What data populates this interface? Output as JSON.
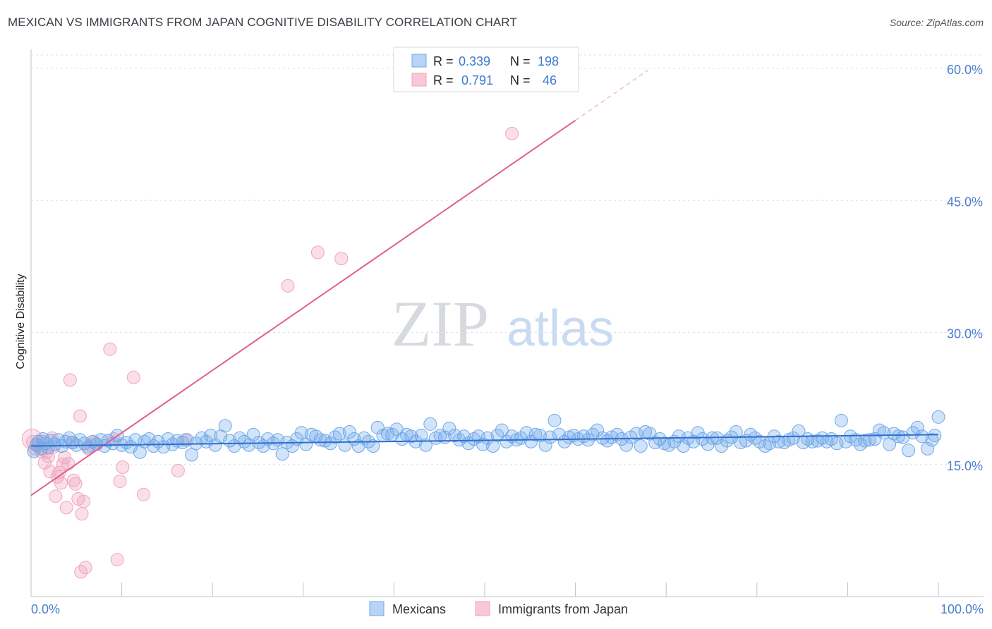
{
  "title": "MEXICAN VS IMMIGRANTS FROM JAPAN COGNITIVE DISABILITY CORRELATION CHART",
  "source": "Source: ZipAtlas.com",
  "watermark": {
    "zip": "ZIP",
    "atlas": "atlas"
  },
  "colors": {
    "blue": "#6fa8e8",
    "blue_line": "#2f6fd1",
    "pink": "#f2a3bd",
    "pink_line": "#e0608a",
    "tick": "#4a7fd0"
  },
  "legend": {
    "rows": [
      {
        "r_label": "R =",
        "r_value": "0.339",
        "n_label": "N =",
        "n_value": "198"
      },
      {
        "r_label": "R =",
        "r_value": "0.791",
        "n_label": "N =",
        "n_value": "46"
      }
    ]
  },
  "bottom_legend": [
    "Mexicans",
    "Immigrants from Japan"
  ],
  "chart_data": {
    "type": "scatter",
    "title": "MEXICAN VS IMMIGRANTS FROM JAPAN COGNITIVE DISABILITY CORRELATION CHART",
    "xlabel": "",
    "ylabel": "Cognitive Disability",
    "xlim": [
      0,
      100
    ],
    "ylim": [
      0,
      63
    ],
    "x_tick_labels": [
      "0.0%",
      "100.0%"
    ],
    "y_ticks": [
      15,
      30,
      45,
      60
    ],
    "y_tick_labels": [
      "15.0%",
      "30.0%",
      "45.0%",
      "60.0%"
    ],
    "series": [
      {
        "name": "Mexicans",
        "R": 0.339,
        "N": 198,
        "trend": {
          "x0": 0,
          "y0": 17.1,
          "x1": 100,
          "y1": 18.4
        },
        "points": [
          [
            0.3,
            16.5
          ],
          [
            0.6,
            17.2
          ],
          [
            0.8,
            17.6
          ],
          [
            1.1,
            16.8
          ],
          [
            1.3,
            17.9
          ],
          [
            1.6,
            17.4
          ],
          [
            1.9,
            16.9
          ],
          [
            2.2,
            17.7
          ],
          [
            2.6,
            17.3
          ],
          [
            3.0,
            17.8
          ],
          [
            3.4,
            17.1
          ],
          [
            3.8,
            17.6
          ],
          [
            4.2,
            18.0
          ],
          [
            4.6,
            17.5
          ],
          [
            5.0,
            17.2
          ],
          [
            5.4,
            17.8
          ],
          [
            5.9,
            17.4
          ],
          [
            6.3,
            17.0
          ],
          [
            6.8,
            17.6
          ],
          [
            7.2,
            17.3
          ],
          [
            7.7,
            17.8
          ],
          [
            8.1,
            17.1
          ],
          [
            8.5,
            17.7
          ],
          [
            9.0,
            17.4
          ],
          [
            9.5,
            18.3
          ],
          [
            10.0,
            17.2
          ],
          [
            10.5,
            17.5
          ],
          [
            11.0,
            17.0
          ],
          [
            11.5,
            17.8
          ],
          [
            12.0,
            16.4
          ],
          [
            12.5,
            17.6
          ],
          [
            13.0,
            17.9
          ],
          [
            13.5,
            17.1
          ],
          [
            14.0,
            17.6
          ],
          [
            14.6,
            17.0
          ],
          [
            15.1,
            17.9
          ],
          [
            15.6,
            17.3
          ],
          [
            16.1,
            17.7
          ],
          [
            16.7,
            17.5
          ],
          [
            17.2,
            17.8
          ],
          [
            17.7,
            16.1
          ],
          [
            18.2,
            17.4
          ],
          [
            18.8,
            18.0
          ],
          [
            19.3,
            17.6
          ],
          [
            19.8,
            18.3
          ],
          [
            20.3,
            17.2
          ],
          [
            20.9,
            18.2
          ],
          [
            21.4,
            19.4
          ],
          [
            21.9,
            17.7
          ],
          [
            22.4,
            17.1
          ],
          [
            23.0,
            18.0
          ],
          [
            23.5,
            17.6
          ],
          [
            24.0,
            17.2
          ],
          [
            24.5,
            18.4
          ],
          [
            25.1,
            17.5
          ],
          [
            25.6,
            17.1
          ],
          [
            26.1,
            17.9
          ],
          [
            26.7,
            17.4
          ],
          [
            27.2,
            17.8
          ],
          [
            27.7,
            16.2
          ],
          [
            28.2,
            17.5
          ],
          [
            28.8,
            17.1
          ],
          [
            29.3,
            17.9
          ],
          [
            29.8,
            18.6
          ],
          [
            30.3,
            17.3
          ],
          [
            30.9,
            18.4
          ],
          [
            31.4,
            18.2
          ],
          [
            31.9,
            17.8
          ],
          [
            32.4,
            17.7
          ],
          [
            33.0,
            17.4
          ],
          [
            33.5,
            18.1
          ],
          [
            34.0,
            18.5
          ],
          [
            34.6,
            17.2
          ],
          [
            35.1,
            18.7
          ],
          [
            35.6,
            17.9
          ],
          [
            36.1,
            17.1
          ],
          [
            36.7,
            18.0
          ],
          [
            37.2,
            17.6
          ],
          [
            37.7,
            17.1
          ],
          [
            38.2,
            19.2
          ],
          [
            38.8,
            18.3
          ],
          [
            39.3,
            18.5
          ],
          [
            39.8,
            18.4
          ],
          [
            40.3,
            19.0
          ],
          [
            40.9,
            17.9
          ],
          [
            41.4,
            18.4
          ],
          [
            41.9,
            18.2
          ],
          [
            42.4,
            17.6
          ],
          [
            43.0,
            18.3
          ],
          [
            43.5,
            17.2
          ],
          [
            44.0,
            19.6
          ],
          [
            44.6,
            18.0
          ],
          [
            45.1,
            18.3
          ],
          [
            45.6,
            18.1
          ],
          [
            46.1,
            19.1
          ],
          [
            46.7,
            18.3
          ],
          [
            47.2,
            17.8
          ],
          [
            47.7,
            18.2
          ],
          [
            48.2,
            17.4
          ],
          [
            48.8,
            17.9
          ],
          [
            49.3,
            18.2
          ],
          [
            49.8,
            17.3
          ],
          [
            50.3,
            18.0
          ],
          [
            50.9,
            17.1
          ],
          [
            51.4,
            18.3
          ],
          [
            51.9,
            18.9
          ],
          [
            52.4,
            17.6
          ],
          [
            53.0,
            18.2
          ],
          [
            53.5,
            17.8
          ],
          [
            54.0,
            18.0
          ],
          [
            54.6,
            18.6
          ],
          [
            55.1,
            17.6
          ],
          [
            55.6,
            18.4
          ],
          [
            56.1,
            18.3
          ],
          [
            56.7,
            17.2
          ],
          [
            57.2,
            18.1
          ],
          [
            57.7,
            20.0
          ],
          [
            58.2,
            18.4
          ],
          [
            58.8,
            17.6
          ],
          [
            59.3,
            18.1
          ],
          [
            59.8,
            18.3
          ],
          [
            60.3,
            17.9
          ],
          [
            60.9,
            18.2
          ],
          [
            61.4,
            17.8
          ],
          [
            61.9,
            18.4
          ],
          [
            62.4,
            18.9
          ],
          [
            63.0,
            18.0
          ],
          [
            63.5,
            17.7
          ],
          [
            64.0,
            18.1
          ],
          [
            64.6,
            18.4
          ],
          [
            65.1,
            17.9
          ],
          [
            65.6,
            17.2
          ],
          [
            66.1,
            18.1
          ],
          [
            66.7,
            18.5
          ],
          [
            67.2,
            17.1
          ],
          [
            67.7,
            18.7
          ],
          [
            68.2,
            18.5
          ],
          [
            68.8,
            17.5
          ],
          [
            69.3,
            17.9
          ],
          [
            69.8,
            17.4
          ],
          [
            70.3,
            17.2
          ],
          [
            70.9,
            17.6
          ],
          [
            71.4,
            18.2
          ],
          [
            71.9,
            17.1
          ],
          [
            72.4,
            18.0
          ],
          [
            73.0,
            17.6
          ],
          [
            73.5,
            18.6
          ],
          [
            74.0,
            17.9
          ],
          [
            74.6,
            17.3
          ],
          [
            75.1,
            18.0
          ],
          [
            75.6,
            18.0
          ],
          [
            76.1,
            17.1
          ],
          [
            76.7,
            17.7
          ],
          [
            77.2,
            18.1
          ],
          [
            77.7,
            18.7
          ],
          [
            78.2,
            17.5
          ],
          [
            78.8,
            17.7
          ],
          [
            79.3,
            18.4
          ],
          [
            79.8,
            18.0
          ],
          [
            80.3,
            17.6
          ],
          [
            80.9,
            17.1
          ],
          [
            81.4,
            17.4
          ],
          [
            81.9,
            18.2
          ],
          [
            82.4,
            17.6
          ],
          [
            83.0,
            17.5
          ],
          [
            83.5,
            17.8
          ],
          [
            84.0,
            18.0
          ],
          [
            84.6,
            18.8
          ],
          [
            85.1,
            17.5
          ],
          [
            85.6,
            17.9
          ],
          [
            86.1,
            17.6
          ],
          [
            86.7,
            17.7
          ],
          [
            87.2,
            18.0
          ],
          [
            87.7,
            17.6
          ],
          [
            88.2,
            17.9
          ],
          [
            88.8,
            17.4
          ],
          [
            89.3,
            20.0
          ],
          [
            89.8,
            17.6
          ],
          [
            90.3,
            18.2
          ],
          [
            90.9,
            17.8
          ],
          [
            91.4,
            17.3
          ],
          [
            91.9,
            17.7
          ],
          [
            92.4,
            17.8
          ],
          [
            93.0,
            17.9
          ],
          [
            93.5,
            18.9
          ],
          [
            94.0,
            18.6
          ],
          [
            94.6,
            17.3
          ],
          [
            95.1,
            18.5
          ],
          [
            95.6,
            18.2
          ],
          [
            96.1,
            18.1
          ],
          [
            96.7,
            16.6
          ],
          [
            97.2,
            18.6
          ],
          [
            97.7,
            19.2
          ],
          [
            98.2,
            18.2
          ],
          [
            98.8,
            16.8
          ],
          [
            99.3,
            17.8
          ],
          [
            99.6,
            18.3
          ],
          [
            100.0,
            20.4
          ]
        ]
      },
      {
        "name": "Immigrants from Japan",
        "R": 0.791,
        "N": 46,
        "trend": {
          "x0": 0,
          "y0": 11.5,
          "x1": 60,
          "y1": 54.1,
          "x1_dashed": 68,
          "y1_dashed": 59.8
        },
        "points": [
          [
            0.2,
            17.6
          ],
          [
            0.4,
            16.8
          ],
          [
            0.6,
            17.3
          ],
          [
            0.9,
            17.1
          ],
          [
            1.1,
            16.5
          ],
          [
            1.3,
            17.6
          ],
          [
            1.5,
            15.2
          ],
          [
            1.7,
            16.4
          ],
          [
            1.9,
            15.9
          ],
          [
            2.1,
            14.2
          ],
          [
            2.3,
            18.0
          ],
          [
            2.5,
            17.0
          ],
          [
            2.7,
            11.4
          ],
          [
            2.9,
            13.6
          ],
          [
            3.1,
            14.1
          ],
          [
            3.3,
            12.9
          ],
          [
            3.5,
            15.0
          ],
          [
            3.7,
            15.8
          ],
          [
            3.9,
            10.1
          ],
          [
            4.1,
            15.1
          ],
          [
            4.3,
            24.6
          ],
          [
            4.5,
            17.5
          ],
          [
            4.7,
            13.2
          ],
          [
            4.9,
            12.8
          ],
          [
            5.2,
            11.1
          ],
          [
            5.4,
            20.5
          ],
          [
            5.6,
            9.4
          ],
          [
            5.8,
            10.8
          ],
          [
            6.0,
            3.3
          ],
          [
            5.5,
            2.8
          ],
          [
            6.3,
            16.8
          ],
          [
            6.6,
            17.2
          ],
          [
            7.0,
            17.5
          ],
          [
            8.7,
            28.1
          ],
          [
            9.1,
            17.9
          ],
          [
            9.5,
            4.2
          ],
          [
            9.8,
            13.1
          ],
          [
            10.1,
            14.7
          ],
          [
            11.3,
            24.9
          ],
          [
            12.4,
            11.6
          ],
          [
            16.2,
            14.3
          ],
          [
            17.0,
            17.8
          ],
          [
            28.3,
            35.3
          ],
          [
            31.6,
            39.1
          ],
          [
            34.2,
            38.4
          ],
          [
            53.0,
            52.6
          ]
        ]
      }
    ]
  }
}
